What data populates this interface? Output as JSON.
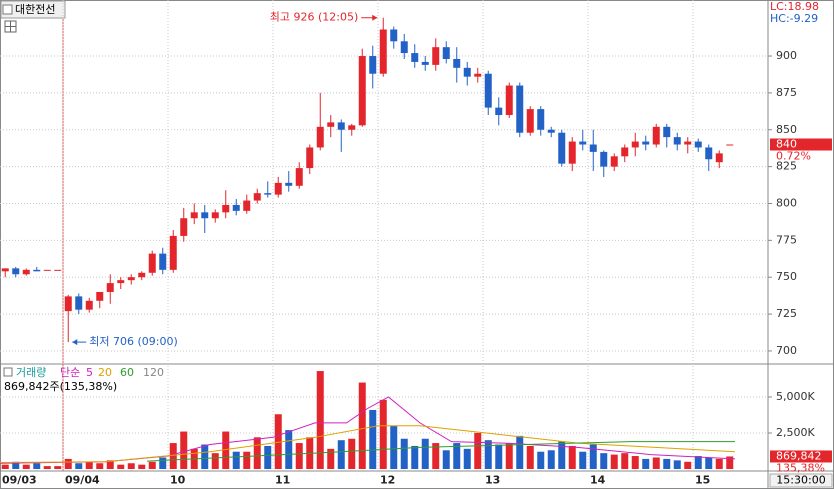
{
  "header": {
    "stock_name": "대한전선",
    "lc": "LC:18.98",
    "hc": "HC:-9.29",
    "time_label": "15:30:00"
  },
  "chart_data": [
    {
      "type": "candlestick",
      "up_color": "#e3262c",
      "down_color": "#2262c6",
      "grid": true,
      "xlim": [
        0,
        73
      ],
      "xticks": [
        {
          "value": 0,
          "label": "09/03"
        },
        {
          "value": 6,
          "label": "09/04"
        },
        {
          "value": 16,
          "label": "10"
        },
        {
          "value": 26,
          "label": "11"
        },
        {
          "value": 36,
          "label": "12"
        },
        {
          "value": 46,
          "label": "13"
        },
        {
          "value": 56,
          "label": "14"
        },
        {
          "value": 66,
          "label": "15"
        }
      ],
      "ylim": [
        692.5,
        938
      ],
      "yticks": [
        700,
        725,
        750,
        775,
        800,
        825,
        850,
        875,
        900
      ],
      "open": [
        754,
        756,
        752,
        755,
        755,
        755,
        727,
        737,
        728,
        734,
        740,
        746,
        748,
        750,
        753,
        766,
        755,
        778,
        790,
        794,
        790,
        794,
        799,
        795,
        802,
        807,
        806,
        814,
        812,
        824,
        838,
        852,
        855,
        850,
        853,
        900,
        888,
        918,
        910,
        902,
        896,
        894,
        906,
        898,
        892,
        886,
        888,
        865,
        860,
        880,
        848,
        864,
        850,
        848,
        827,
        842,
        840,
        835,
        825,
        832,
        838,
        842,
        840,
        852,
        845,
        840,
        842,
        838,
        828,
        840
      ],
      "high": [
        756,
        757,
        756,
        757,
        755,
        755,
        738,
        739,
        736,
        740,
        752,
        750,
        752,
        754,
        768,
        770,
        782,
        797,
        800,
        799,
        796,
        809,
        803,
        806,
        810,
        815,
        818,
        822,
        828,
        840,
        875,
        860,
        857,
        854,
        905,
        907,
        926,
        920,
        915,
        908,
        900,
        912,
        910,
        906,
        896,
        892,
        890,
        872,
        882,
        882,
        866,
        866,
        852,
        850,
        845,
        850,
        850,
        836,
        834,
        840,
        848,
        846,
        854,
        854,
        848,
        845,
        844,
        840,
        836,
        840
      ],
      "low": [
        750,
        750,
        751,
        754,
        755,
        755,
        706,
        725,
        726,
        729,
        732,
        742,
        745,
        748,
        751,
        752,
        753,
        774,
        786,
        780,
        787,
        790,
        792,
        793,
        800,
        804,
        804,
        808,
        810,
        820,
        836,
        845,
        835,
        846,
        852,
        878,
        886,
        905,
        898,
        892,
        890,
        890,
        895,
        882,
        880,
        882,
        860,
        853,
        858,
        845,
        846,
        846,
        845,
        825,
        822,
        836,
        822,
        818,
        822,
        828,
        832,
        836,
        838,
        838,
        836,
        834,
        835,
        822,
        824,
        840
      ],
      "close": [
        756,
        752,
        755,
        754,
        755,
        755,
        737,
        728,
        734,
        740,
        746,
        748,
        750,
        753,
        766,
        755,
        778,
        790,
        794,
        790,
        794,
        799,
        795,
        802,
        807,
        806,
        814,
        812,
        824,
        838,
        852,
        855,
        850,
        853,
        900,
        888,
        918,
        910,
        902,
        896,
        894,
        906,
        898,
        892,
        886,
        888,
        865,
        860,
        880,
        848,
        864,
        850,
        848,
        827,
        842,
        840,
        835,
        825,
        832,
        838,
        842,
        840,
        852,
        845,
        840,
        842,
        838,
        830,
        834,
        840
      ],
      "annotations": [
        {
          "text": "최고 926 (12:05)",
          "value": 926,
          "x": 36,
          "color": "#e3262c"
        },
        {
          "text": "최저 706 (09:00)",
          "value": 706,
          "x": 6,
          "color": "#2262c6"
        }
      ],
      "last_price": {
        "value": 840,
        "change": "0.72%"
      }
    },
    {
      "type": "volume",
      "volume_label": "거래량",
      "volume_label_color": "#1a9a9a",
      "ma_label": "단순",
      "ma_label_color": "#d020c0",
      "info": "869,842주(135,38%)",
      "ylim": [
        0,
        7150
      ],
      "yticks": [
        {
          "value": 2500,
          "label": "2,500K"
        },
        {
          "value": 5000,
          "label": "5,000K"
        }
      ],
      "values": [
        300,
        500,
        300,
        400,
        200,
        200,
        700,
        400,
        500,
        400,
        600,
        300,
        400,
        300,
        500,
        800,
        1800,
        2600,
        1400,
        1700,
        1100,
        2600,
        1200,
        1200,
        2200,
        1600,
        3800,
        2700,
        1800,
        2200,
        6800,
        1400,
        2000,
        2100,
        6000,
        4100,
        4800,
        3000,
        2100,
        1600,
        2100,
        1800,
        1300,
        1800,
        1400,
        2500,
        2000,
        1700,
        1800,
        2300,
        1600,
        1200,
        1300,
        1900,
        1600,
        1200,
        1700,
        1100,
        1000,
        1100,
        900,
        700,
        800,
        700,
        600,
        500,
        900,
        800,
        700,
        869.842
      ],
      "last_volume": {
        "label": "869,842",
        "value": 869.842,
        "change": "135,38%"
      },
      "series": [
        {
          "name": "5",
          "color": "#d020c0",
          "x": [
            0,
            10,
            16,
            20,
            26,
            30,
            33,
            35,
            37,
            40,
            43,
            48,
            55,
            62,
            70
          ],
          "values": [
            400,
            500,
            900,
            1700,
            2200,
            3200,
            3200,
            4200,
            5000,
            3200,
            1900,
            1800,
            1500,
            1000,
            700
          ]
        },
        {
          "name": "20",
          "color": "#e0a000",
          "x": [
            0,
            10,
            20,
            30,
            36,
            40,
            45,
            50,
            55,
            60,
            70
          ],
          "values": [
            450,
            500,
            1200,
            2200,
            3000,
            3000,
            2600,
            2200,
            1800,
            1600,
            1200
          ]
        },
        {
          "name": "60",
          "color": "#2e9e2e",
          "x": [
            14,
            30,
            40,
            50,
            60,
            70
          ],
          "values": [
            550,
            1100,
            1500,
            1700,
            1900,
            1900
          ]
        }
      ],
      "extra_legend": {
        "name": "120",
        "color": "#888888"
      }
    }
  ]
}
